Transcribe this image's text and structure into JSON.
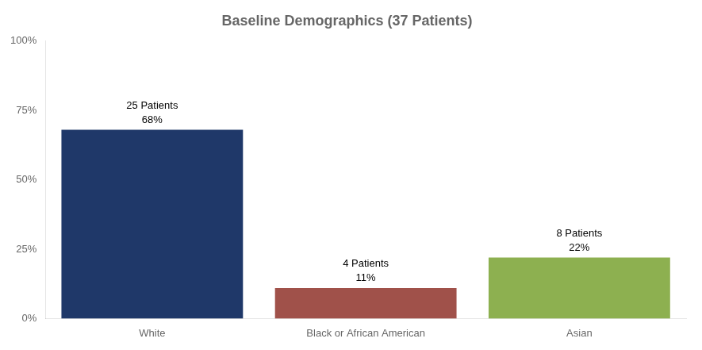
{
  "chart_data": {
    "type": "bar",
    "title": "Baseline Demographics (37 Patients)",
    "categories": [
      "White",
      "Black or African American",
      "Asian"
    ],
    "values": [
      68,
      11,
      22
    ],
    "colors": [
      "#1f3869",
      "#a0514a",
      "#8db050"
    ],
    "data_labels": true,
    "value_labels": [
      "68%",
      "11%",
      "22%"
    ],
    "annotations": [
      "25 Patients",
      "4 Patients",
      "8 Patients"
    ],
    "ylim": [
      0,
      100
    ],
    "yticks": [
      {
        "value": 0,
        "label": "0%"
      },
      {
        "value": 25,
        "label": "25%"
      },
      {
        "value": 50,
        "label": "50%"
      },
      {
        "value": 75,
        "label": "75%"
      },
      {
        "value": 100,
        "label": "100%"
      }
    ],
    "grid": false
  }
}
